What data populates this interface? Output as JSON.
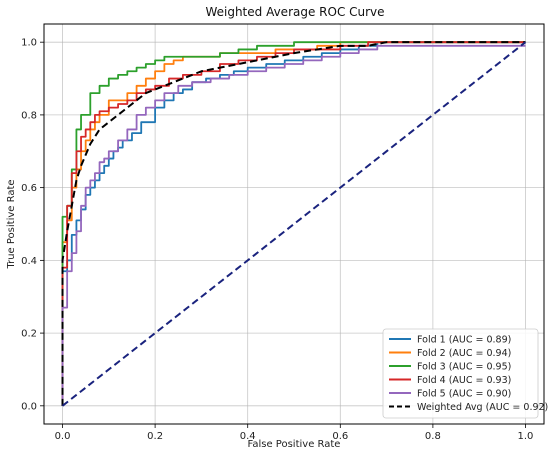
{
  "chart_data": {
    "type": "line",
    "title": "Weighted Average ROC Curve",
    "xlabel": "False Positive Rate",
    "ylabel": "True Positive Rate",
    "xlim": [
      -0.04,
      1.04
    ],
    "ylim": [
      -0.05,
      1.05
    ],
    "xticks": [
      "0.0",
      "0.2",
      "0.4",
      "0.6",
      "0.8",
      "1.0"
    ],
    "yticks": [
      "0.0",
      "0.2",
      "0.4",
      "0.6",
      "0.8",
      "1.0"
    ],
    "grid": true,
    "legend_position": "lower-right",
    "series": [
      {
        "name": "Fold 1 (AUC = 0.89)",
        "color": "#1f77b4",
        "style": "solid",
        "step": true,
        "x": [
          0.0,
          0.0,
          0.01,
          0.02,
          0.02,
          0.03,
          0.04,
          0.05,
          0.06,
          0.07,
          0.08,
          0.09,
          0.1,
          0.11,
          0.12,
          0.13,
          0.15,
          0.17,
          0.2,
          0.22,
          0.24,
          0.26,
          0.28,
          0.31,
          0.34,
          0.37,
          0.4,
          0.44,
          0.48,
          0.52,
          0.56,
          0.6,
          0.64,
          0.68,
          1.0
        ],
        "y": [
          0.0,
          0.37,
          0.4,
          0.45,
          0.47,
          0.51,
          0.54,
          0.58,
          0.6,
          0.62,
          0.64,
          0.66,
          0.68,
          0.7,
          0.71,
          0.73,
          0.75,
          0.78,
          0.82,
          0.84,
          0.86,
          0.87,
          0.89,
          0.9,
          0.91,
          0.92,
          0.93,
          0.94,
          0.95,
          0.96,
          0.97,
          0.98,
          0.99,
          1.0,
          1.0
        ]
      },
      {
        "name": "Fold 2 (AUC = 0.94)",
        "color": "#ff7f0e",
        "style": "solid",
        "step": true,
        "x": [
          0.0,
          0.0,
          0.01,
          0.02,
          0.03,
          0.04,
          0.05,
          0.06,
          0.07,
          0.08,
          0.1,
          0.12,
          0.14,
          0.16,
          0.18,
          0.2,
          0.22,
          0.24,
          0.26,
          0.3,
          0.34,
          0.38,
          0.42,
          0.46,
          0.5,
          0.55,
          0.6,
          0.65,
          1.0
        ],
        "y": [
          0.0,
          0.45,
          0.51,
          0.6,
          0.65,
          0.7,
          0.73,
          0.76,
          0.78,
          0.8,
          0.84,
          0.84,
          0.86,
          0.88,
          0.9,
          0.92,
          0.94,
          0.95,
          0.96,
          0.96,
          0.97,
          0.97,
          0.97,
          0.98,
          0.98,
          0.99,
          1.0,
          1.0,
          1.0
        ]
      },
      {
        "name": "Fold 3 (AUC = 0.95)",
        "color": "#2ca02c",
        "style": "solid",
        "step": true,
        "x": [
          0.0,
          0.0,
          0.01,
          0.02,
          0.03,
          0.04,
          0.05,
          0.06,
          0.08,
          0.1,
          0.12,
          0.14,
          0.16,
          0.18,
          0.2,
          0.22,
          0.26,
          0.3,
          0.34,
          0.38,
          0.42,
          0.46,
          0.5,
          0.55,
          0.6,
          1.0
        ],
        "y": [
          0.0,
          0.52,
          0.55,
          0.65,
          0.76,
          0.8,
          0.8,
          0.86,
          0.88,
          0.9,
          0.91,
          0.92,
          0.93,
          0.94,
          0.95,
          0.96,
          0.96,
          0.96,
          0.97,
          0.98,
          0.99,
          0.99,
          1.0,
          1.0,
          1.0,
          1.0
        ]
      },
      {
        "name": "Fold 4 (AUC = 0.93)",
        "color": "#d62728",
        "style": "solid",
        "step": true,
        "x": [
          0.0,
          0.0,
          0.01,
          0.02,
          0.03,
          0.04,
          0.05,
          0.06,
          0.07,
          0.08,
          0.1,
          0.12,
          0.14,
          0.16,
          0.18,
          0.2,
          0.23,
          0.26,
          0.3,
          0.34,
          0.38,
          0.42,
          0.46,
          0.5,
          0.55,
          0.6,
          0.66,
          1.0
        ],
        "y": [
          0.0,
          0.38,
          0.55,
          0.64,
          0.7,
          0.74,
          0.76,
          0.78,
          0.8,
          0.81,
          0.82,
          0.83,
          0.84,
          0.86,
          0.87,
          0.88,
          0.9,
          0.91,
          0.92,
          0.94,
          0.95,
          0.96,
          0.97,
          0.98,
          0.98,
          0.99,
          1.0,
          1.0
        ]
      },
      {
        "name": "Fold 5 (AUC = 0.90)",
        "color": "#9467bd",
        "style": "solid",
        "step": true,
        "x": [
          0.0,
          0.0,
          0.01,
          0.02,
          0.03,
          0.04,
          0.05,
          0.06,
          0.07,
          0.08,
          0.09,
          0.1,
          0.12,
          0.14,
          0.16,
          0.18,
          0.2,
          0.22,
          0.25,
          0.28,
          0.32,
          0.36,
          0.4,
          0.44,
          0.48,
          0.52,
          0.56,
          0.6,
          0.64,
          0.68,
          1.0
        ],
        "y": [
          0.0,
          0.27,
          0.37,
          0.42,
          0.48,
          0.55,
          0.6,
          0.62,
          0.64,
          0.67,
          0.68,
          0.7,
          0.73,
          0.76,
          0.8,
          0.82,
          0.84,
          0.86,
          0.88,
          0.89,
          0.9,
          0.91,
          0.92,
          0.93,
          0.94,
          0.95,
          0.96,
          0.97,
          0.98,
          0.99,
          0.99
        ]
      },
      {
        "name": "Weighted Avg (AUC = 0.92)",
        "color": "#000000",
        "style": "dashed",
        "step": false,
        "x": [
          0.0,
          0.0,
          0.01,
          0.02,
          0.03,
          0.04,
          0.05,
          0.06,
          0.07,
          0.08,
          0.1,
          0.12,
          0.14,
          0.16,
          0.18,
          0.2,
          0.22,
          0.24,
          0.26,
          0.28,
          0.3,
          0.34,
          0.38,
          0.42,
          0.46,
          0.5,
          0.55,
          0.6,
          0.66,
          0.7,
          1.0
        ],
        "y": [
          0.0,
          0.4,
          0.48,
          0.55,
          0.62,
          0.66,
          0.69,
          0.72,
          0.74,
          0.76,
          0.78,
          0.8,
          0.82,
          0.84,
          0.86,
          0.87,
          0.88,
          0.89,
          0.9,
          0.91,
          0.92,
          0.93,
          0.94,
          0.95,
          0.96,
          0.97,
          0.98,
          0.99,
          0.99,
          1.0,
          1.0
        ]
      },
      {
        "name": "",
        "color": "#1a237e",
        "style": "dashed",
        "step": false,
        "x": [
          0,
          1
        ],
        "y": [
          0,
          1
        ]
      }
    ]
  }
}
